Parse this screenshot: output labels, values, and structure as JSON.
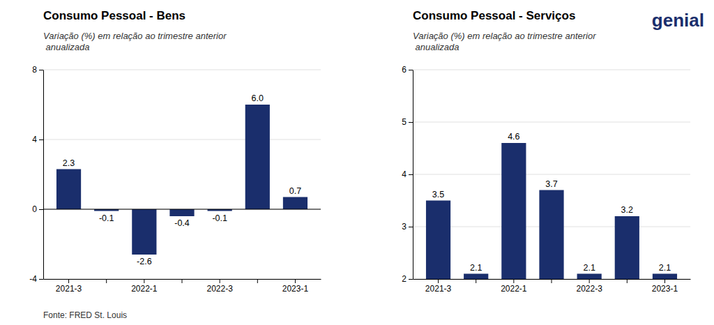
{
  "chart_data": [
    {
      "type": "bar",
      "title": "Consumo Pessoal - Bens",
      "subtitle": "Variação (%) em relação ao trimestre anterior\n anualizada",
      "categories": [
        "2021-3",
        null,
        "2022-1",
        null,
        "2022-3",
        null,
        "2023-1"
      ],
      "values": [
        2.3,
        -0.1,
        -2.6,
        -0.4,
        -0.1,
        6.0,
        0.7
      ],
      "value_labels": [
        "2.3",
        "-0.1",
        "-2.6",
        "-0.4",
        "-0.1",
        "6.0",
        "0.7"
      ],
      "color": "#1a2e6c",
      "ylim": [
        -4,
        8
      ],
      "yticks": [
        -4,
        0,
        4,
        8
      ],
      "grid": true,
      "data_labels": true,
      "annotations": [
        "Fonte: FRED St. Louis"
      ]
    },
    {
      "type": "bar",
      "title": "Consumo Pessoal - Serviços",
      "subtitle": "Variação (%) em relação ao trimestre anterior\n anualizada",
      "categories": [
        "2021-3",
        null,
        "2022-1",
        null,
        "2022-3",
        null,
        "2023-1"
      ],
      "values": [
        3.5,
        2.1,
        4.6,
        3.7,
        2.1,
        3.2,
        2.1
      ],
      "color": "#1a2e6c",
      "ylim": [
        2,
        6
      ],
      "yticks": [
        2,
        3,
        4,
        5,
        6
      ],
      "grid": true,
      "data_labels": true,
      "annotations": [
        "genial"
      ]
    }
  ]
}
